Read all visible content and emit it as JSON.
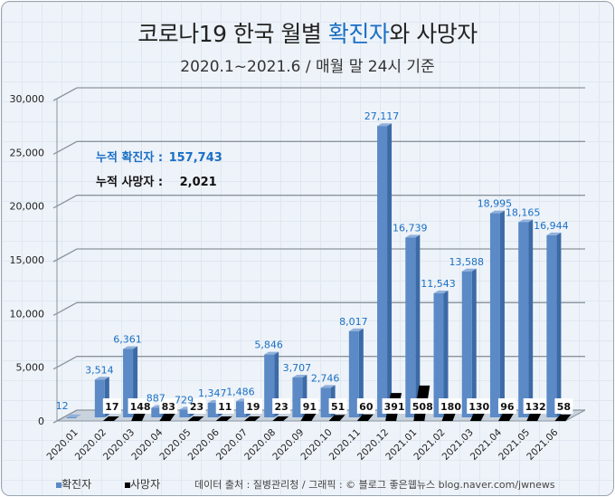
{
  "title": {
    "part1": "코로나19 한국 월별 ",
    "highlight": "확진자",
    "part2": "와 사망자"
  },
  "subtitle": "2020.1~2021.6  / 매월 말 24시 기준",
  "summary": {
    "confirmed_label": "누적 확진자 :",
    "confirmed_value": "157,743",
    "deaths_label": "누적 사망자 :",
    "deaths_value": "2,021"
  },
  "legend": {
    "confirmed": "확진자",
    "deaths": "사망자"
  },
  "source": "데이터 출처 : 질병관리청 / 그래픽 : © 블로그 좋은웹뉴스 blog.naver.com/jwnews",
  "colors": {
    "confirmed": "#5b8ac6",
    "deaths": "#000000",
    "label_blue": "#1a6fc4"
  },
  "chart_data": {
    "type": "bar",
    "title": "코로나19 한국 월별 확진자와 사망자",
    "categories": [
      "2020.01",
      "2020.02",
      "2020.03",
      "2020.04",
      "2020.05",
      "2020.06",
      "2020.07",
      "2020.08",
      "2020.09",
      "2020.10",
      "2020.11",
      "2020.12",
      "2021.01",
      "2021.02",
      "2021.03",
      "2021.04",
      "2021.05",
      "2021.06"
    ],
    "series": [
      {
        "name": "확진자",
        "values": [
          12,
          3514,
          6361,
          887,
          729,
          1347,
          1486,
          5846,
          3707,
          2746,
          8017,
          27117,
          16739,
          11543,
          13588,
          18995,
          18165,
          16944
        ]
      },
      {
        "name": "사망자",
        "values": [
          null,
          17,
          148,
          83,
          23,
          11,
          19,
          23,
          91,
          51,
          60,
          391,
          508,
          180,
          130,
          96,
          132,
          58
        ]
      }
    ],
    "yticks": [
      "0",
      "5,000",
      "10,000",
      "15,000",
      "20,000",
      "25,000",
      "30,000"
    ],
    "ylim": [
      0,
      30000
    ],
    "legend": "bottom-left",
    "grid": true
  }
}
